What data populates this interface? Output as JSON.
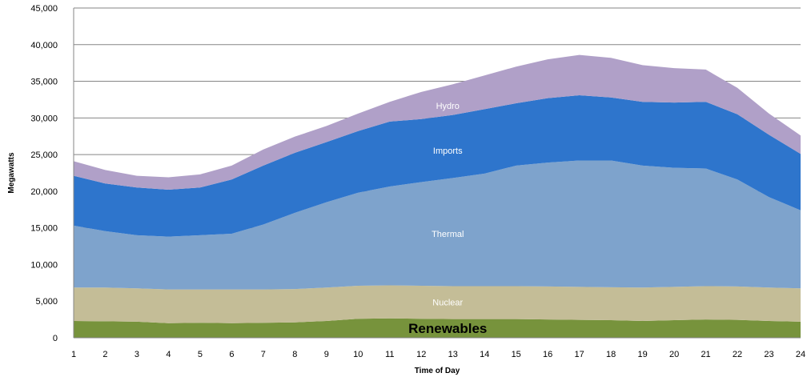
{
  "chart_data": {
    "type": "area",
    "stacked": true,
    "title": "",
    "xlabel": "Time of Day",
    "ylabel": "Megawatts",
    "ylim": [
      0,
      45000
    ],
    "yticks": [
      0,
      5000,
      10000,
      15000,
      20000,
      25000,
      30000,
      35000,
      40000,
      45000
    ],
    "ytick_labels": [
      "0",
      "5,000",
      "10,000",
      "15,000",
      "20,000",
      "25,000",
      "30,000",
      "35,000",
      "40,000",
      "45,000"
    ],
    "x": [
      1,
      2,
      3,
      4,
      5,
      6,
      7,
      8,
      9,
      10,
      11,
      12,
      13,
      14,
      15,
      16,
      17,
      18,
      19,
      20,
      21,
      22,
      23,
      24
    ],
    "grid": true,
    "legend": "none",
    "series": [
      {
        "name": "Renewables",
        "color": "#77933C",
        "values": [
          2300,
          2250,
          2200,
          2000,
          2050,
          2000,
          2050,
          2100,
          2300,
          2600,
          2650,
          2600,
          2550,
          2550,
          2550,
          2500,
          2450,
          2400,
          2300,
          2400,
          2500,
          2450,
          2300,
          2200
        ]
      },
      {
        "name": "Nuclear",
        "color": "#C4BD97",
        "values": [
          4550,
          4600,
          4550,
          4600,
          4550,
          4600,
          4550,
          4550,
          4550,
          4500,
          4500,
          4500,
          4500,
          4500,
          4500,
          4500,
          4500,
          4500,
          4550,
          4550,
          4550,
          4550,
          4550,
          4550
        ]
      },
      {
        "name": "Thermal",
        "color": "#7EA3CC",
        "values": [
          8450,
          7700,
          7250,
          7200,
          7400,
          7600,
          8850,
          10400,
          11650,
          12700,
          13500,
          14150,
          14750,
          15350,
          16450,
          16900,
          17250,
          17300,
          16650,
          16250,
          16050,
          14600,
          12350,
          10650
        ]
      },
      {
        "name": "Imports",
        "color": "#2E75CC",
        "values": [
          6800,
          6500,
          6500,
          6400,
          6500,
          7400,
          8050,
          8200,
          8200,
          8400,
          8850,
          8600,
          8600,
          8800,
          8500,
          8800,
          8900,
          8600,
          8700,
          8900,
          9100,
          8900,
          8500,
          7700
        ]
      },
      {
        "name": "Hydro",
        "color": "#B0A0C8",
        "values": [
          2000,
          1850,
          1600,
          1700,
          1800,
          1900,
          2200,
          2200,
          2200,
          2400,
          2700,
          3700,
          4200,
          4600,
          5000,
          5300,
          5500,
          5400,
          5000,
          4700,
          4400,
          3600,
          2900,
          2500
        ]
      }
    ],
    "area_labels": [
      "Hydro",
      "Imports",
      "Thermal",
      "Nuclear",
      "Renewables"
    ]
  }
}
